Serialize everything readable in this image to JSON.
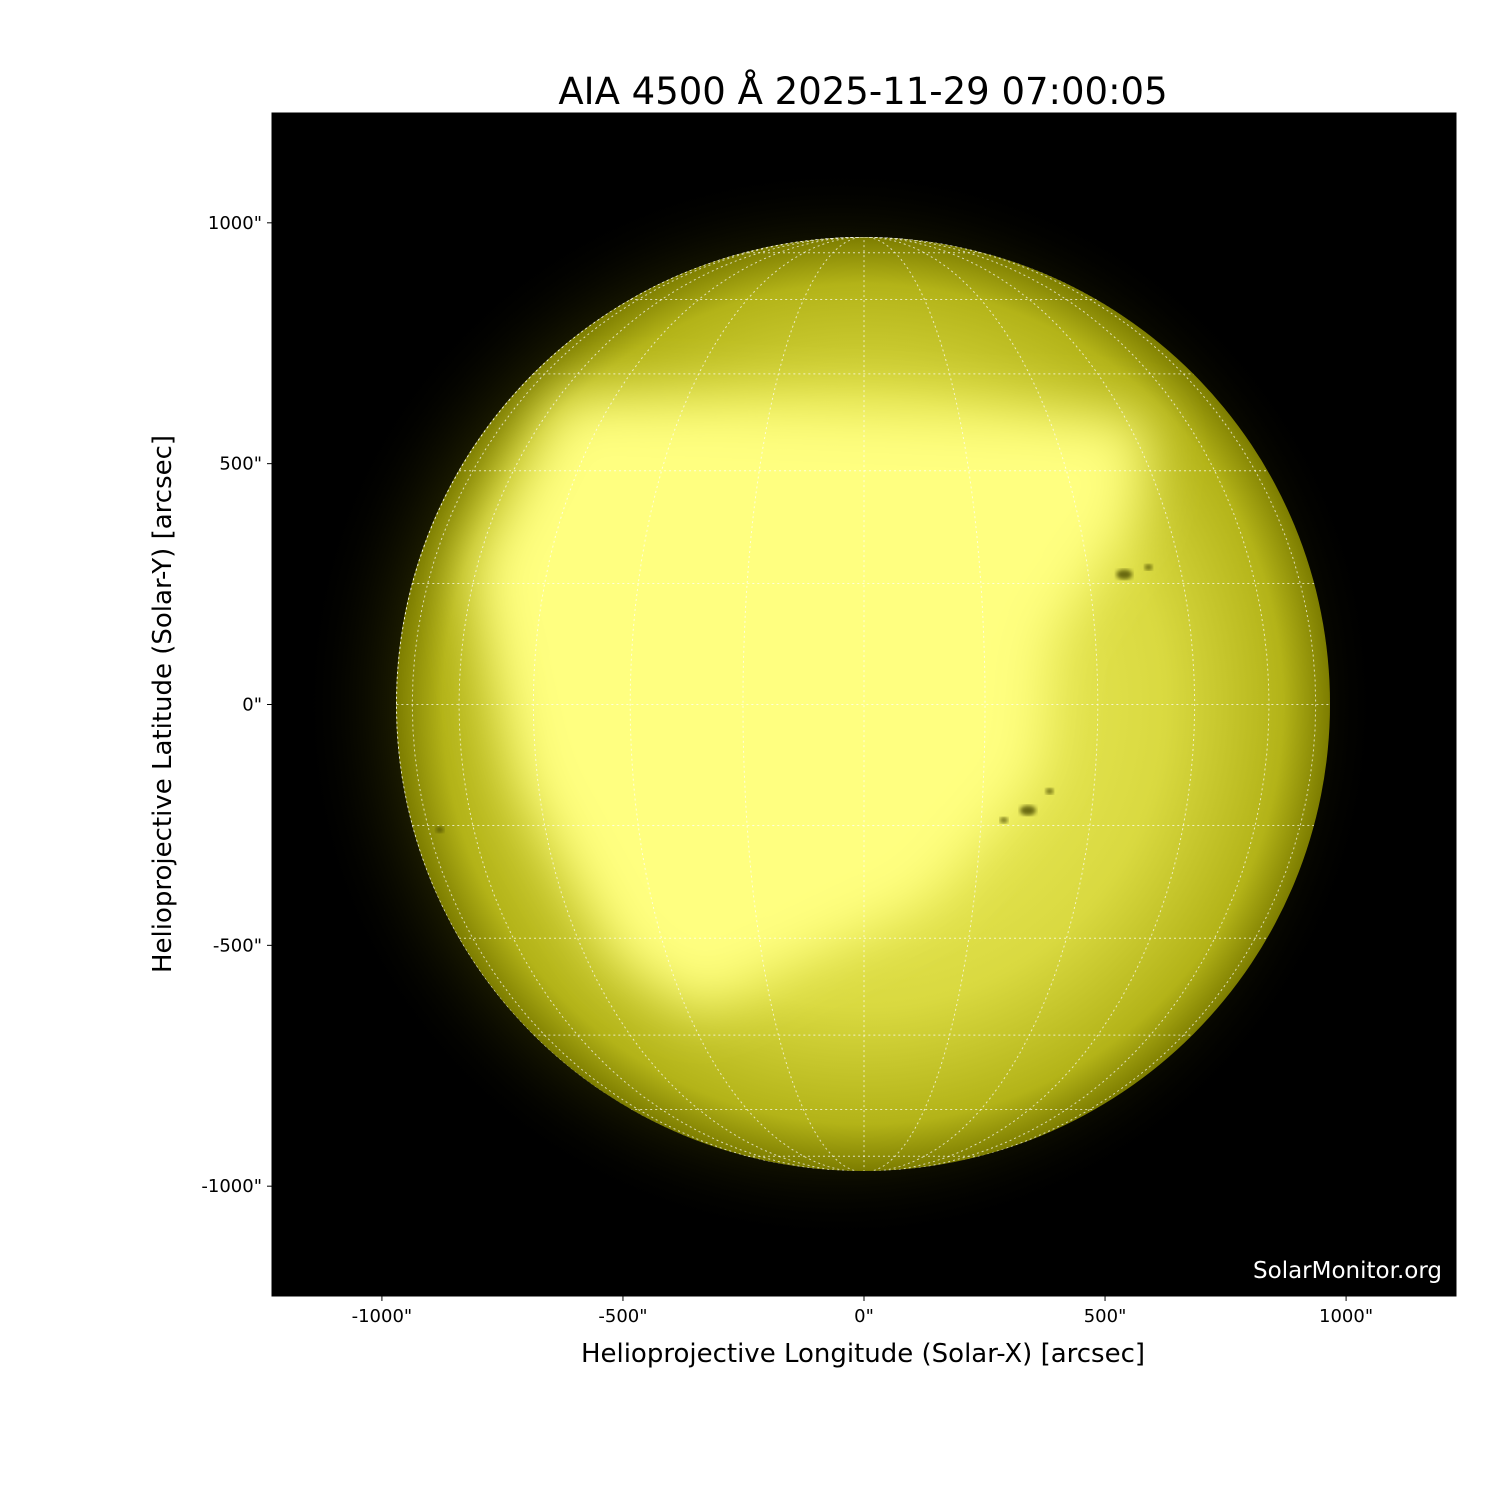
{
  "chart_data": {
    "type": "heatmap",
    "title": "AIA 4500 Å 2025-11-29 07:00:05",
    "xlabel": "Helioprojective Longitude (Solar-X) [arcsec]",
    "ylabel": "Helioprojective Latitude (Solar-Y) [arcsec]",
    "xlim": [
      -1228,
      1228
    ],
    "ylim": [
      -1228,
      1228
    ],
    "x_ticks": [
      -1000,
      -500,
      0,
      500,
      1000
    ],
    "y_ticks": [
      -1000,
      -500,
      0,
      500,
      1000
    ],
    "x_tick_labels": [
      "-1000\"",
      "-500\"",
      "0\"",
      "500\"",
      "1000\""
    ],
    "y_tick_labels": [
      "-1000\"",
      "-500\"",
      "0\"",
      "500\"",
      "1000\""
    ],
    "solar_radius_arcsec": 970,
    "grid": "heliographic lat/lon every 15°, dotted white",
    "grid_spacing_deg": 15,
    "colormap": "black to yellow (sdoaia4500)",
    "colors": {
      "background": "#000000",
      "disk_bright": "#ffff80",
      "disk_limb": "#8a8a00",
      "grid": "#ffffff"
    },
    "sunspots_arcsec": [
      [
        540,
        270
      ],
      [
        590,
        285
      ],
      [
        340,
        -220
      ],
      [
        385,
        -180
      ],
      [
        290,
        -240
      ],
      [
        -880,
        -260
      ]
    ],
    "watermark": "SolarMonitor.org"
  }
}
